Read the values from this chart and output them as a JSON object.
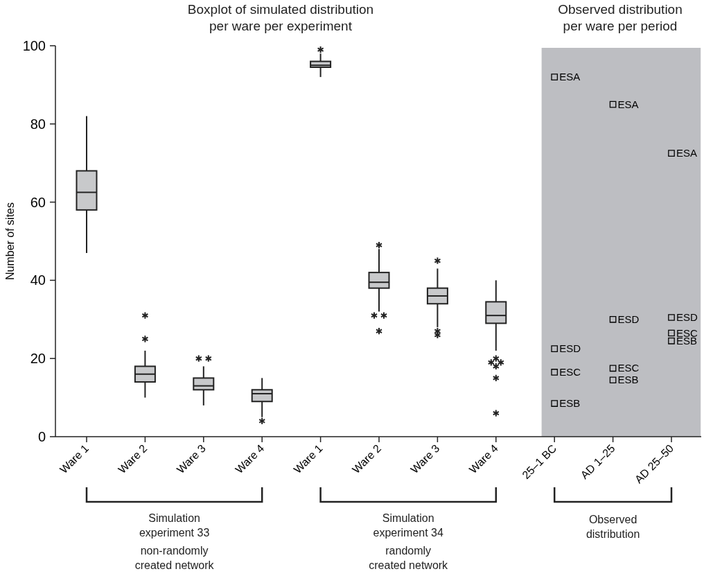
{
  "chart_data": {
    "type": "box",
    "title": "Boxplot of simulated distribution\nper ware per experiment",
    "ylabel": "Number of sites",
    "categories": [
      "Ware 1",
      "Ware 2",
      "Ware 3",
      "Ware 4",
      "Ware 1",
      "Ware 2",
      "Ware 3",
      "Ware 4",
      "25–1 BC",
      "AD 1–25",
      "AD 25–50"
    ],
    "ylim": [
      0,
      100
    ],
    "yticks": [
      0,
      20,
      40,
      60,
      80,
      100
    ],
    "marker": "square",
    "series": [
      {
        "color": "#c8c9cb",
        "boxes": [
          {
            "low": 47,
            "q1": 58,
            "median": 62.5,
            "q3": 68,
            "high": 82
          },
          {
            "low": 10,
            "q1": 14,
            "median": 16,
            "q3": 18,
            "high": 22,
            "outliers": [
              31,
              25
            ]
          },
          {
            "low": 8,
            "q1": 12,
            "median": 13,
            "q3": 15,
            "high": 18,
            "outliers": [
              20,
              20
            ]
          },
          {
            "low": 5,
            "q1": 9,
            "median": 11,
            "q3": 12,
            "high": 15,
            "outliers": [
              4
            ]
          },
          {
            "low": 92,
            "q1": 94.5,
            "median": 95,
            "q3": 96,
            "high": 98,
            "outliers": [
              99
            ]
          },
          {
            "low": 32,
            "q1": 38,
            "median": 39.5,
            "q3": 42,
            "high": 48,
            "outliers": [
              49,
              31,
              31,
              27
            ]
          },
          {
            "low": 28,
            "q1": 34,
            "median": 36,
            "q3": 38,
            "high": 43,
            "outliers": [
              45,
              27,
              26
            ]
          },
          {
            "low": 22,
            "q1": 29,
            "median": 31,
            "q3": 34.5,
            "high": 40,
            "outliers": [
              20,
              19,
              19,
              18,
              15,
              6
            ]
          },
          null,
          null,
          null
        ]
      },
      {
        "type": "scatter",
        "name": "ESA",
        "color": "#000000",
        "values": [
          null,
          null,
          null,
          null,
          null,
          null,
          null,
          null,
          92,
          85,
          72.5
        ]
      },
      {
        "type": "scatter",
        "name": "ESB",
        "color": "#000000",
        "values": [
          null,
          null,
          null,
          null,
          null,
          null,
          null,
          null,
          8.5,
          14.5,
          24.5
        ]
      },
      {
        "type": "scatter",
        "name": "ESC",
        "color": "#000000",
        "values": [
          null,
          null,
          null,
          null,
          null,
          null,
          null,
          null,
          16.5,
          17.5,
          26.5
        ]
      },
      {
        "type": "scatter",
        "name": "ESD",
        "color": "#000000",
        "values": [
          null,
          null,
          null,
          null,
          null,
          null,
          null,
          null,
          22.5,
          30,
          30.5
        ]
      }
    ],
    "bands": [
      {
        "axis": "x",
        "from": "25–1 BC",
        "to": "AD 25–50",
        "color": "#bdbec2"
      }
    ],
    "annotations": [
      "Observed distribution\nper ware per period",
      "Simulation\nexperiment 33",
      "non-randomly\ncreated network",
      "Simulation\nexperiment 34",
      "randomly\ncreated network",
      "Observed\ndistribution"
    ]
  }
}
